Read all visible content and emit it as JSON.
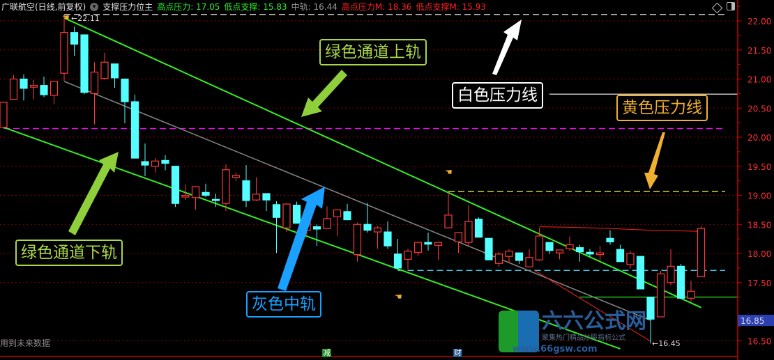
{
  "header": {
    "stock": "广联航空(日线,前复权)",
    "indicator": "支撑压力位主",
    "values": [
      {
        "label": "高点压力: 17.05",
        "color": "#2ef02e"
      },
      {
        "label": "低点支撑: 15.83",
        "color": "#2ef02e"
      },
      {
        "label": "中轨: 16.44",
        "color": "#9a9a9a"
      },
      {
        "label": "高点压力M: 18.36",
        "color": "#ff2020"
      },
      {
        "label": "低点支撑M: 15.93",
        "color": "#ff2020"
      }
    ]
  },
  "annotations": {
    "upper": "绿色通道上轨",
    "lower": "绿色通道下轨",
    "middle": "灰色中轨",
    "white": "白色压力线",
    "yellow": "黄色压力线"
  },
  "footer": {
    "note": "用到未来数据",
    "tag_jian": "减",
    "tag_cai": "财"
  },
  "logo": {
    "name": "六六公式网",
    "slogan": "聚集热门精品炒股指标公式",
    "url": "www.66gsw.com"
  },
  "colors": {
    "up": "#ff3b3b",
    "down": "#54ffff",
    "channel": "#33ee22",
    "middle": "#808080",
    "grid": "#c00000",
    "axis": "#ff3030"
  },
  "chart_data": {
    "type": "candlestick",
    "ylim": [
      16.3,
      22.15
    ],
    "yticks": [
      "22.00",
      "21.50",
      "21.00",
      "20.50",
      "20.00",
      "19.50",
      "19.00",
      "18.50",
      "18.00",
      "17.50",
      "16.50"
    ],
    "current_price_label": "16.85",
    "high_label": "22.11",
    "low_label": "16.45",
    "candles": [
      [
        20.17,
        20.6,
        20.17,
        20.6
      ],
      [
        20.65,
        21.07,
        20.65,
        21.0
      ],
      [
        21.0,
        21.08,
        20.63,
        20.84
      ],
      [
        20.86,
        20.99,
        20.65,
        20.89
      ],
      [
        20.89,
        21.04,
        20.69,
        20.73
      ],
      [
        20.72,
        20.96,
        20.57,
        20.96
      ],
      [
        21.1,
        22.11,
        20.97,
        21.8
      ],
      [
        21.8,
        21.9,
        21.4,
        21.6
      ],
      [
        21.76,
        21.76,
        20.74,
        20.77
      ],
      [
        20.75,
        21.29,
        20.22,
        21.12
      ],
      [
        21.01,
        21.45,
        20.99,
        21.29
      ],
      [
        21.26,
        21.26,
        20.85,
        21.02
      ],
      [
        21.0,
        21.0,
        20.24,
        20.61
      ],
      [
        20.61,
        20.73,
        19.64,
        19.64
      ],
      [
        19.58,
        19.89,
        19.33,
        19.52
      ],
      [
        19.5,
        19.64,
        19.39,
        19.59
      ],
      [
        19.6,
        19.69,
        19.43,
        19.55
      ],
      [
        19.5,
        19.5,
        18.8,
        18.86
      ],
      [
        18.97,
        19.19,
        18.92,
        19.0
      ],
      [
        18.96,
        19.15,
        18.75,
        19.15
      ],
      [
        19.05,
        19.2,
        18.97,
        19.0
      ],
      [
        18.93,
        19.03,
        18.8,
        18.91
      ],
      [
        18.86,
        19.53,
        18.73,
        19.44
      ],
      [
        19.31,
        19.39,
        19.25,
        19.34
      ],
      [
        19.25,
        19.52,
        18.8,
        18.91
      ],
      [
        18.92,
        19.31,
        18.9,
        19.02
      ],
      [
        19.03,
        19.03,
        18.73,
        18.92
      ],
      [
        18.84,
        18.9,
        18.01,
        18.62
      ],
      [
        18.44,
        18.87,
        18.37,
        18.85
      ],
      [
        18.83,
        18.89,
        18.52,
        18.52
      ],
      [
        18.4,
        18.6,
        18.3,
        18.55
      ],
      [
        18.46,
        18.5,
        18.13,
        18.42
      ],
      [
        18.43,
        18.81,
        18.43,
        18.6
      ],
      [
        18.63,
        18.75,
        18.3,
        18.75
      ],
      [
        18.72,
        18.85,
        18.58,
        18.58
      ],
      [
        17.98,
        18.53,
        17.86,
        18.5
      ],
      [
        18.5,
        18.87,
        18.36,
        18.4
      ],
      [
        18.37,
        18.47,
        18.08,
        18.44
      ],
      [
        18.37,
        18.55,
        18.08,
        18.13
      ],
      [
        17.99,
        18.25,
        17.73,
        17.75
      ],
      [
        17.9,
        18.08,
        17.73,
        18.04
      ],
      [
        18.02,
        18.19,
        17.95,
        18.19
      ],
      [
        18.19,
        18.36,
        18.05,
        18.16
      ],
      [
        18.14,
        18.19,
        17.89,
        18.19
      ],
      [
        18.44,
        19.07,
        18.44,
        18.66
      ],
      [
        18.2,
        18.36,
        18.01,
        18.36
      ],
      [
        18.19,
        18.83,
        18.13,
        18.55
      ],
      [
        18.59,
        18.62,
        18.28,
        18.28
      ],
      [
        18.26,
        18.26,
        17.89,
        17.89
      ],
      [
        17.83,
        18.03,
        17.77,
        17.99
      ],
      [
        17.95,
        18.07,
        17.83,
        18.04
      ],
      [
        18.01,
        18.01,
        17.82,
        17.88
      ],
      [
        17.77,
        18.07,
        17.77,
        17.93
      ],
      [
        17.89,
        18.44,
        17.87,
        18.3
      ],
      [
        18.19,
        18.19,
        17.99,
        18.05
      ],
      [
        18.01,
        18.06,
        17.9,
        18.06
      ],
      [
        18.08,
        18.29,
        18.05,
        18.15
      ],
      [
        18.1,
        18.15,
        17.86,
        18.03
      ],
      [
        18.02,
        18.08,
        17.94,
        17.99
      ],
      [
        17.98,
        18.13,
        17.86,
        18.01
      ],
      [
        18.26,
        18.4,
        18.15,
        18.2
      ],
      [
        18.07,
        18.15,
        17.86,
        17.86
      ],
      [
        17.81,
        18.04,
        17.74,
        18.0
      ],
      [
        17.95,
        17.95,
        17.39,
        17.39
      ],
      [
        17.25,
        17.25,
        16.45,
        16.87
      ],
      [
        16.91,
        17.7,
        16.91,
        17.65
      ],
      [
        17.5,
        18.07,
        17.45,
        17.78
      ],
      [
        17.78,
        17.82,
        17.23,
        17.23
      ],
      [
        17.23,
        17.53,
        17.17,
        17.35
      ],
      [
        17.6,
        18.47,
        17.6,
        18.43
      ]
    ],
    "lines": [
      {
        "id": "upper-channel",
        "color": "#33ee22",
        "points": [
          [
            6,
            22.05
          ],
          [
            69,
            17.07
          ]
        ]
      },
      {
        "id": "lower-channel",
        "color": "#33ee22",
        "points": [
          [
            0,
            20.17
          ],
          [
            61,
            16.36
          ]
        ]
      },
      {
        "id": "middle-line",
        "color": "#808080",
        "points": [
          [
            6,
            20.96
          ],
          [
            64,
            16.85
          ]
        ]
      },
      {
        "id": "red-support-line",
        "color": "#ff2020",
        "points": [
          [
            52.5,
            17.71
          ],
          [
            64,
            16.49
          ]
        ]
      },
      {
        "id": "red-high-step",
        "color": "#ff2020",
        "points": [
          [
            53,
            18.46
          ],
          [
            56,
            18.45
          ],
          [
            60,
            18.43
          ],
          [
            64,
            18.4
          ],
          [
            69,
            18.38
          ]
        ]
      }
    ],
    "levels": [
      {
        "id": "white-dashed",
        "price": 22.11,
        "from": 6,
        "color": "#ffffff",
        "dash": true
      },
      {
        "id": "magenta-dashed",
        "price": 20.15,
        "from": 0,
        "color": "#ff00ff",
        "dash": true
      },
      {
        "id": "white-pressure",
        "price": 20.74,
        "from": 54,
        "color": "#ffffff",
        "dash": false
      },
      {
        "id": "yellow-pressure",
        "price": 19.07,
        "from": 44,
        "color": "#ffff40",
        "dash": true
      },
      {
        "id": "cyan-dashed",
        "price": 17.71,
        "from": 39,
        "color": "#40e0ff",
        "dash": true
      },
      {
        "id": "green-support",
        "price": 17.25,
        "from": 57,
        "color": "#22ee22",
        "dash": false
      }
    ]
  }
}
